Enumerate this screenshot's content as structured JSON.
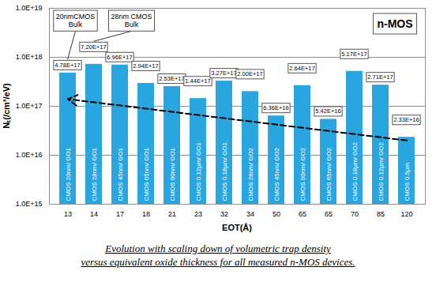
{
  "chart_data": {
    "type": "bar",
    "x_label": "EOT(Å)",
    "y_label": "Nₜ(/cm³/eV)",
    "categories": [
      "13",
      "14",
      "17",
      "18",
      "21",
      "23",
      "32",
      "34",
      "50",
      "65",
      "65",
      "70",
      "85",
      "120"
    ],
    "values": [
      4.78e+17,
      7.2e+17,
      6.96e+17,
      2.94e+17,
      2.53e+17,
      1.44e+17,
      3.27e+17,
      2e+17,
      6.36e+16,
      2.64e+17,
      5.42e+16,
      5.17e+17,
      2.71e+17,
      2.33e+16
    ],
    "value_labels": [
      "4.78E+17",
      "7.20E+17",
      "6.96E+17",
      "2.94E+17",
      "2.53E+17",
      "1.44E+17",
      "3.27E+17",
      "2.00E+17",
      "6.36E+16",
      "2.64E+17",
      "5.42E+16",
      "5.17E+17",
      "2.71E+17",
      "2.33E+16"
    ],
    "bar_labels": [
      "CMOS 20nm/ GO1",
      "CMOS 28nm/ GO1",
      "CMOS 45nm/ GO1",
      "CMOS 65nm/ GO1",
      "CMOS 90nm/ GO1",
      "CMOS 0.12µm/ GO1",
      "CMOS 0.18µm/ GO1",
      "CMOS 28nm/ GO2",
      "CMOS 45nm/ GO2",
      "CMOS 90nm/ GO2",
      "CMOS 65nm/ GO2",
      "CMOS 0.18µm/ GO2",
      "CMOS 0.12µm/ GO2",
      "CMOS 0.5µm"
    ],
    "color": "#29a6e0",
    "log": "y",
    "ylim": [
      1000000000000000.0,
      1e+19
    ],
    "yticks": [
      {
        "value": 1000000000000000.0,
        "label": "1.0E+15"
      },
      {
        "value": 1e+16,
        "label": "1.0E+16"
      },
      {
        "value": 1e+17,
        "label": "1.0E+17"
      },
      {
        "value": 1e+18,
        "label": "1.0E+18"
      },
      {
        "value": 1e+19,
        "label": "1.0E+19"
      }
    ],
    "grid": true,
    "data_labels": true,
    "annotations": [
      [
        "20nmCMOS",
        "Bulk"
      ],
      [
        "28nm CMOS",
        "Bulk"
      ]
    ],
    "inset_label": "n-MOS",
    "trend": {
      "start": 1.4e+17,
      "end": 2e+16
    },
    "caption": [
      "Evolution with scaling down of volumetric trap density",
      "versus equivalent oxide thickness for all measured n-MOS devices."
    ]
  }
}
